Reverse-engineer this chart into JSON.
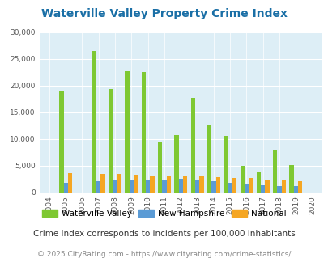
{
  "title": "Waterville Valley Property Crime Index",
  "years": [
    2004,
    2005,
    2006,
    2007,
    2008,
    2009,
    2010,
    2011,
    2012,
    2013,
    2014,
    2015,
    2016,
    2017,
    2018,
    2019,
    2020
  ],
  "waterville": [
    0,
    19000,
    0,
    26500,
    19300,
    22700,
    22500,
    9500,
    10700,
    17600,
    12700,
    10500,
    5000,
    3700,
    8000,
    5100,
    0
  ],
  "new_hampshire": [
    0,
    1800,
    0,
    2100,
    2200,
    2200,
    2300,
    2400,
    2500,
    2300,
    2000,
    1800,
    1600,
    1300,
    1200,
    1100,
    0
  ],
  "national": [
    0,
    3600,
    0,
    3400,
    3400,
    3200,
    3000,
    3000,
    3000,
    3000,
    2800,
    2700,
    2600,
    2400,
    2300,
    2100,
    0
  ],
  "waterville_color": "#7ec832",
  "nh_color": "#5b9bd5",
  "national_color": "#f5a623",
  "bg_color": "#ddeef6",
  "ylim": [
    0,
    30000
  ],
  "yticks": [
    0,
    5000,
    10000,
    15000,
    20000,
    25000,
    30000
  ],
  "footnote1": "Crime Index corresponds to incidents per 100,000 inhabitants",
  "footnote2": "© 2025 CityRating.com - https://www.cityrating.com/crime-statistics/",
  "title_color": "#1a6fa6",
  "footnote1_color": "#333333",
  "footnote2_color": "#888888"
}
